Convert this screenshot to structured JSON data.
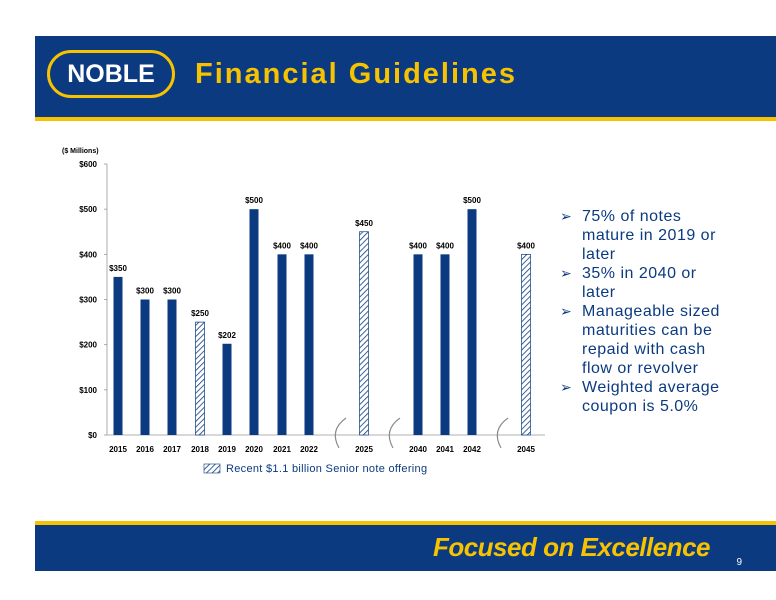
{
  "header": {
    "logo_text": "NOBLE",
    "title": "Financial Guidelines"
  },
  "chart_data": {
    "type": "bar",
    "unit_label": "($ Millions)",
    "categories": [
      "2015",
      "2016",
      "2017",
      "2018",
      "2019",
      "2020",
      "2021",
      "2022",
      "2025",
      "2040",
      "2041",
      "2042",
      "2045"
    ],
    "values": [
      350,
      300,
      300,
      250,
      202,
      500,
      400,
      400,
      450,
      400,
      400,
      500,
      400
    ],
    "value_labels": [
      "$350",
      "$300",
      "$300",
      "$250",
      "$202",
      "$500",
      "$400",
      "$400",
      "$450",
      "$400",
      "$400",
      "$500",
      "$400"
    ],
    "hatched": [
      false,
      false,
      false,
      true,
      false,
      false,
      false,
      false,
      true,
      false,
      false,
      false,
      true
    ],
    "y_ticks": [
      0,
      100,
      200,
      300,
      400,
      500,
      600
    ],
    "y_tick_labels": [
      "$0",
      "$100",
      "$200",
      "$300",
      "$400",
      "$500",
      "$600"
    ],
    "ylim": [
      0,
      600
    ],
    "grid": false,
    "legend": {
      "label": "Recent $1.1 billion Senior note offering",
      "placement": "bottom"
    },
    "colors": {
      "bar": "#0b3a80",
      "hatch": "#0b3a80",
      "axis": "#999999",
      "break": "#8c8c8c"
    }
  },
  "bullets": [
    "75% of notes mature in 2019 or later",
    "35% in 2040 or later",
    "Manageable sized maturities can be repaid with cash flow or revolver",
    "Weighted average coupon is 5.0%"
  ],
  "footer": {
    "tagline": "Focused on Excellence",
    "page_number": "9"
  },
  "theme": {
    "navy": "#0b3a80",
    "gold": "#f7c300"
  }
}
